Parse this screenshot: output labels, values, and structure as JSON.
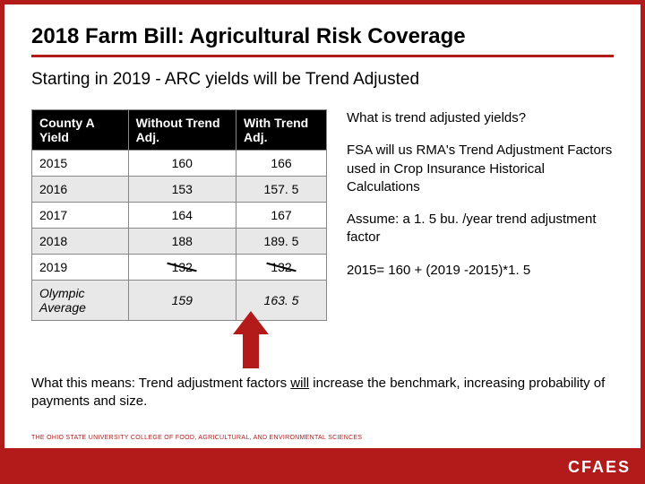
{
  "title": "2018 Farm Bill: Agricultural Risk Coverage",
  "subtitle": "Starting in 2019 - ARC yields will be Trend Adjusted",
  "table": {
    "headers": [
      "County A Yield",
      "Without Trend Adj.",
      "With Trend Adj."
    ],
    "rows": [
      {
        "label": "2015",
        "c1": "160",
        "c2": "166",
        "alt": false,
        "strike": false,
        "italic": false
      },
      {
        "label": "2016",
        "c1": "153",
        "c2": "157. 5",
        "alt": true,
        "strike": false,
        "italic": false
      },
      {
        "label": "2017",
        "c1": "164",
        "c2": "167",
        "alt": false,
        "strike": false,
        "italic": false
      },
      {
        "label": "2018",
        "c1": "188",
        "c2": "189. 5",
        "alt": true,
        "strike": false,
        "italic": false
      },
      {
        "label": "2019",
        "c1": "132",
        "c2": "132",
        "alt": false,
        "strike": true,
        "italic": false
      },
      {
        "label": "Olympic Average",
        "c1": "159",
        "c2": "163. 5",
        "alt": true,
        "strike": false,
        "italic": true
      }
    ]
  },
  "right": {
    "q": "What is trend adjusted yields?",
    "p1": "FSA will us RMA's Trend Adjustment Factors used in Crop Insurance Historical Calculations",
    "p2": "Assume: a 1. 5 bu. /year trend adjustment factor",
    "p3": "2015= 160 + (2019 -2015)*1. 5"
  },
  "footer": {
    "pre": "What this means: Trend adjustment factors ",
    "u": "will",
    "post": " increase the benchmark, increasing probability of payments and size."
  },
  "univ": "THE OHIO STATE UNIVERSITY COLLEGE OF FOOD, AGRICULTURAL, AND ENVIRONMENTAL SCIENCES",
  "brand": "CFAES"
}
